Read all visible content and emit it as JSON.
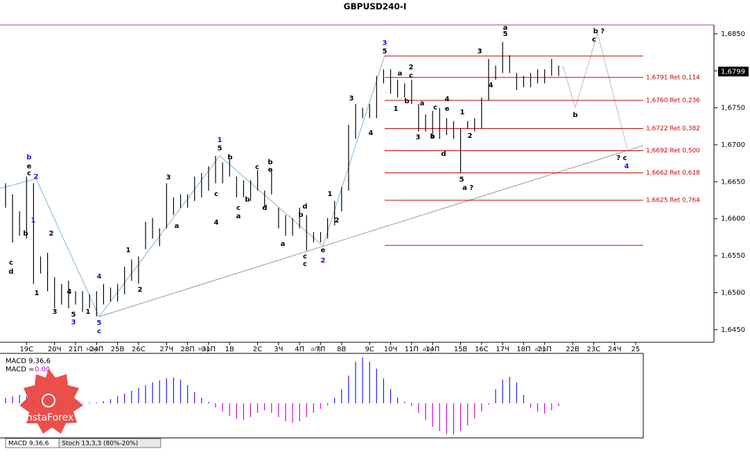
{
  "chart_data": {
    "type": "ohlc",
    "title": "GBPUSD240-I",
    "categories": [
      null,
      null,
      null,
      "19С",
      null,
      null,
      null,
      "20Ч",
      null,
      null,
      "21П",
      null,
      null,
      "24П",
      null,
      null,
      "25В",
      null,
      null,
      "26С",
      null,
      null,
      null,
      "27Ч",
      null,
      null,
      "28П",
      null,
      null,
      "31П",
      null,
      null,
      "1В",
      null,
      null,
      null,
      "2С",
      null,
      null,
      "3Ч",
      null,
      null,
      "4П",
      null,
      null,
      "7П",
      null,
      null,
      "8В",
      null,
      null,
      null,
      "9С",
      null,
      null,
      "10Ч",
      null,
      null,
      "11П",
      null,
      null,
      "14П",
      null,
      null,
      null,
      "15В",
      null,
      null,
      "16С",
      null,
      null,
      "17Ч",
      null,
      null,
      "18П",
      null,
      null,
      "21П",
      null,
      null,
      null,
      "22В",
      null,
      null,
      "23С",
      null,
      null,
      "24Ч",
      null,
      null,
      "25"
    ],
    "months": [
      null,
      null,
      null,
      null,
      null,
      null,
      null,
      null,
      null,
      null,
      null,
      null,
      null,
      "мар",
      null,
      null,
      null,
      null,
      null,
      null,
      null,
      null,
      null,
      null,
      null,
      null,
      null,
      null,
      null,
      "мар",
      null,
      null,
      null,
      null,
      null,
      null,
      null,
      null,
      null,
      null,
      null,
      null,
      null,
      null,
      null,
      "апр",
      null,
      null,
      null,
      null,
      null,
      null,
      null,
      null,
      null,
      null,
      null,
      null,
      null,
      null,
      null,
      "апр",
      null,
      null,
      null,
      null,
      null,
      null,
      null,
      null,
      null,
      null,
      null,
      null,
      null,
      null,
      null,
      "апр",
      null,
      null,
      null,
      null,
      null,
      null,
      null,
      null,
      null,
      null,
      null,
      null,
      null
    ],
    "high": [
      1.6648,
      1.6633,
      1.661,
      1.6657,
      1.6648,
      1.6549,
      1.6554,
      1.6521,
      1.6512,
      1.6516,
      1.6502,
      1.6502,
      1.6498,
      1.6502,
      1.6512,
      1.6507,
      1.6512,
      1.6535,
      1.6545,
      1.6549,
      1.6596,
      1.6601,
      1.6587,
      1.6648,
      1.6629,
      1.6633,
      1.6633,
      1.6657,
      1.6662,
      1.6671,
      1.6685,
      1.6676,
      1.668,
      1.6657,
      1.6652,
      1.6652,
      1.6666,
      1.6638,
      1.6666,
      1.6615,
      1.6605,
      1.6601,
      1.6615,
      1.6605,
      1.6582,
      1.6582,
      1.6601,
      1.6624,
      1.6643,
      1.6727,
      1.6755,
      1.675,
      1.6755,
      1.6793,
      1.6802,
      1.6802,
      1.6788,
      1.6783,
      1.6788,
      1.6755,
      1.6741,
      1.6746,
      1.675,
      1.6736,
      1.6732,
      1.6722,
      1.6732,
      1.6736,
      1.6764,
      1.6816,
      1.6807,
      1.6839,
      1.6821,
      1.6797,
      1.6793,
      1.6797,
      1.6802,
      1.6802,
      1.6816,
      1.6807,
      null,
      null,
      null,
      null,
      null,
      null,
      null,
      null,
      null,
      null,
      null
    ],
    "low": [
      1.6615,
      1.6568,
      1.6577,
      1.6573,
      1.6512,
      1.6526,
      1.6502,
      1.6479,
      1.6484,
      1.6479,
      1.6484,
      1.6474,
      1.6479,
      1.6468,
      1.6484,
      1.6488,
      1.6488,
      1.6498,
      1.6516,
      1.6512,
      1.6559,
      1.6573,
      1.6563,
      1.6587,
      1.6605,
      1.6615,
      1.6615,
      1.6624,
      1.6629,
      1.6638,
      1.6648,
      1.6648,
      1.6657,
      1.6629,
      1.6629,
      1.6624,
      1.6638,
      1.6615,
      1.6633,
      1.6587,
      1.6577,
      1.6577,
      1.6587,
      1.6557,
      1.6568,
      1.6568,
      1.6573,
      1.6591,
      1.661,
      1.6638,
      1.6708,
      1.6736,
      1.6736,
      1.6736,
      1.6783,
      1.6769,
      1.6764,
      1.6764,
      1.6755,
      1.6718,
      1.6718,
      1.6708,
      1.6708,
      1.6713,
      1.6708,
      1.6662,
      1.6722,
      1.6718,
      1.6722,
      1.676,
      1.6788,
      1.6797,
      1.6797,
      1.6774,
      1.6778,
      1.6778,
      1.6783,
      1.6783,
      1.6793,
      1.6793,
      null,
      null,
      null,
      null,
      null,
      null,
      null,
      null,
      null,
      null,
      null
    ],
    "color": "#000000",
    "ylim": [
      1.6433,
      1.6862
    ],
    "yticks": [
      {
        "value": 1.645,
        "label": "1,6450"
      },
      {
        "value": 1.65,
        "label": "1,6500"
      },
      {
        "value": 1.655,
        "label": "1,6550"
      },
      {
        "value": 1.66,
        "label": "1,6600"
      },
      {
        "value": 1.665,
        "label": "1,6650"
      },
      {
        "value": 1.67,
        "label": "1,6700"
      },
      {
        "value": 1.675,
        "label": "1,6750"
      },
      {
        "value": 1.68,
        "label": "1,6800"
      },
      {
        "value": 1.685,
        "label": "1,6850"
      }
    ],
    "last_price": {
      "value": 1.6799,
      "label": "1,6799"
    },
    "level_color": "#cc0000",
    "levels": [
      1.682,
      {
        "value": 1.6791,
        "label": "1,6791 Ret 0,114"
      },
      {
        "value": 1.676,
        "label": "1,6760 Ret 0,236"
      },
      {
        "value": 1.6722,
        "label": "1,6722 Ret 0,382"
      },
      {
        "value": 1.6692,
        "label": "1,6692 Ret 0,500"
      },
      {
        "value": 1.6662,
        "label": "1,6662 Ret 0,618"
      },
      {
        "value": 1.6625,
        "label": "1,6625 Ret 0,764"
      },
      1.6564
    ],
    "annotations": [
      {
        "text": "b",
        "color": "#1414d2"
      },
      {
        "text": "e",
        "color": "#000000"
      },
      {
        "text": "c",
        "color": "#000000"
      },
      {
        "text": "2",
        "color": "#1414d2"
      },
      {
        "text": "1",
        "color": "#1414d2"
      },
      {
        "text": "b",
        "color": "#000000"
      },
      {
        "text": "c",
        "color": "#000000"
      },
      {
        "text": "d",
        "color": "#000000"
      },
      {
        "text": "2",
        "color": "#000000"
      },
      {
        "text": "4",
        "color": "#000000"
      },
      {
        "text": "1",
        "color": "#000000"
      },
      {
        "text": "3",
        "color": "#000000"
      },
      {
        "text": "5",
        "color": "#000000"
      },
      {
        "text": "3",
        "color": "#1414d2"
      },
      {
        "text": "1",
        "color": "#000000"
      },
      {
        "text": "4",
        "color": "#1414d2"
      },
      {
        "text": "5",
        "color": "#1414d2"
      },
      {
        "text": "c",
        "color": "#1414d2"
      },
      {
        "text": "1",
        "color": "#000000"
      },
      {
        "text": "2",
        "color": "#000000"
      },
      {
        "text": "3",
        "color": "#000000"
      },
      {
        "text": "a",
        "color": "#000000"
      },
      {
        "text": "1",
        "color": "#1414d2"
      },
      {
        "text": "5",
        "color": "#000000"
      },
      {
        "text": "b",
        "color": "#000000"
      },
      {
        "text": "c",
        "color": "#000000"
      },
      {
        "text": "4",
        "color": "#000000"
      },
      {
        "text": "b",
        "color": "#000000"
      },
      {
        "text": "c",
        "color": "#000000"
      },
      {
        "text": "a",
        "color": "#000000"
      },
      {
        "text": "c",
        "color": "#000000"
      },
      {
        "text": "b",
        "color": "#000000"
      },
      {
        "text": "e",
        "color": "#000000"
      },
      {
        "text": "d",
        "color": "#000000"
      },
      {
        "text": "b",
        "color": "#000000"
      },
      {
        "text": "d",
        "color": "#000000"
      },
      {
        "text": "a",
        "color": "#000000"
      },
      {
        "text": "c",
        "color": "#000000"
      },
      {
        "text": "c",
        "color": "#000000"
      },
      {
        "text": "e",
        "color": "#000000"
      },
      {
        "text": "2",
        "color": "#1414d2"
      },
      {
        "text": "1",
        "color": "#000000"
      },
      {
        "text": "2",
        "color": "#000000"
      },
      {
        "text": "3",
        "color": "#000000"
      },
      {
        "text": "4",
        "color": "#000000"
      },
      {
        "text": "3",
        "color": "#1414d2"
      },
      {
        "text": "5",
        "color": "#000000"
      },
      {
        "text": "a",
        "color": "#000000"
      },
      {
        "text": "2",
        "color": "#000000"
      },
      {
        "text": "c",
        "color": "#000000"
      },
      {
        "text": "b",
        "color": "#000000"
      },
      {
        "text": "1",
        "color": "#000000"
      },
      {
        "text": "3",
        "color": "#000000"
      },
      {
        "text": "a",
        "color": "#000000"
      },
      {
        "text": "b",
        "color": "#000000"
      },
      {
        "text": "c",
        "color": "#000000"
      },
      {
        "text": "4",
        "color": "#000000"
      },
      {
        "text": "e",
        "color": "#000000"
      },
      {
        "text": "d",
        "color": "#000000"
      },
      {
        "text": "1",
        "color": "#000000"
      },
      {
        "text": "2",
        "color": "#000000"
      },
      {
        "text": "5",
        "color": "#000000"
      },
      {
        "text": "a ?",
        "color": "#000000"
      },
      {
        "text": "3",
        "color": "#000000"
      },
      {
        "text": "4",
        "color": "#000000"
      },
      {
        "text": "a",
        "color": "#000000"
      },
      {
        "text": "5",
        "color": "#000000"
      },
      {
        "text": "b ?",
        "color": "#000000"
      },
      {
        "text": "c",
        "color": "#000000"
      },
      {
        "text": "b",
        "color": "#000000"
      },
      {
        "text": "? c",
        "color": "#000000"
      },
      {
        "text": "4",
        "color": "#1414d2"
      }
    ],
    "macd": {
      "title": "MACD 9,36,6",
      "label": "MACD =",
      "current": {
        "value": 0,
        "label": "0.00"
      },
      "current_color": "#dd00dd",
      "pos_color": "#1a1aff",
      "neg_color": "#cc00cc",
      "ylim": [
        -0.0048,
        0.007
      ],
      "values": [
        0.0008,
        0.001,
        0.0012,
        0.001,
        0.0008,
        0.0006,
        0.0004,
        0.0003,
        0.0002,
        0.0002,
        0.0002,
        0.0001,
        0.0001,
        0.0001,
        0.0003,
        0.0006,
        0.001,
        0.0014,
        0.0018,
        0.0022,
        0.0026,
        0.003,
        0.0033,
        0.0036,
        0.0037,
        0.0034,
        0.0026,
        0.0016,
        0.0008,
        0.0002,
        -0.0006,
        -0.0012,
        -0.0018,
        -0.0022,
        -0.0024,
        -0.002,
        -0.0014,
        -0.001,
        -0.0014,
        -0.002,
        -0.0026,
        -0.0028,
        -0.0026,
        -0.002,
        -0.0014,
        -0.0008,
        -0.0003,
        0.0008,
        0.002,
        0.004,
        0.006,
        0.0066,
        0.006,
        0.005,
        0.0036,
        0.002,
        0.0008,
        0.0002,
        -0.0004,
        -0.0014,
        -0.0024,
        -0.0034,
        -0.004,
        -0.0044,
        -0.0045,
        -0.004,
        -0.0032,
        -0.0022,
        -0.0012,
        -0.0002,
        0.002,
        0.0034,
        0.0038,
        0.003,
        0.0012,
        -0.0006,
        -0.0012,
        -0.0015,
        -0.001,
        -0.0004,
        null,
        null,
        null,
        null,
        null,
        null,
        null,
        null,
        null,
        null,
        null
      ]
    },
    "tabs": [
      "MACD 9,36,6",
      "Stoch 13,3,3 (80%-20%)"
    ],
    "watermark": "InstaForex"
  }
}
